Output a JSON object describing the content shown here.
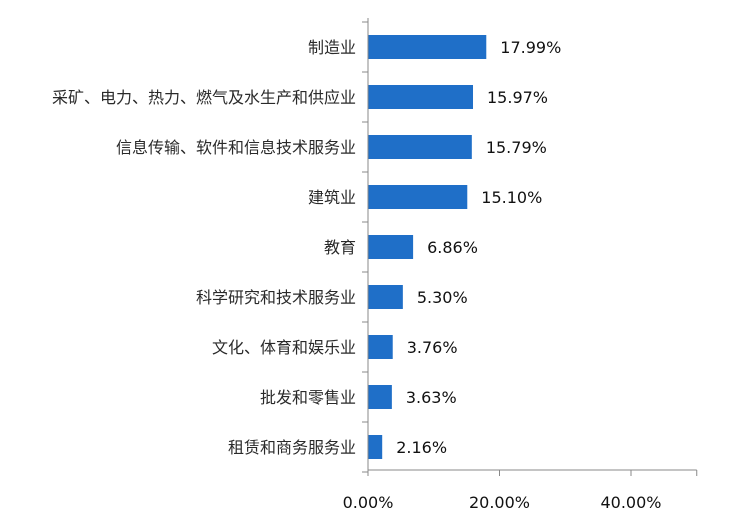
{
  "chart_data": {
    "type": "bar",
    "orientation": "horizontal",
    "categories": [
      "制造业",
      "采矿、电力、热力、燃气及水生产和供应业",
      "信息传输、软件和信息技术服务业",
      "建筑业",
      "教育",
      "科学研究和技术服务业",
      "文化、体育和娱乐业",
      "批发和零售业",
      "租赁和商务服务业"
    ],
    "values": [
      17.99,
      15.97,
      15.79,
      15.1,
      6.86,
      5.3,
      3.76,
      3.63,
      2.16
    ],
    "value_labels": [
      "17.99%",
      "15.97%",
      "15.79%",
      "15.10%",
      "6.86%",
      "5.30%",
      "3.76%",
      "3.63%",
      "2.16%"
    ],
    "x_ticks": [
      0,
      20,
      40
    ],
    "x_tick_labels": [
      "0.00%",
      "20.00%",
      "40.00%"
    ],
    "xlim": [
      0,
      50
    ],
    "title": "",
    "xlabel": "",
    "ylabel": "",
    "grid": false,
    "legend": "none",
    "colors": {
      "bar": "#1f6fc8",
      "axis": "#888888",
      "text": "#222222"
    }
  }
}
